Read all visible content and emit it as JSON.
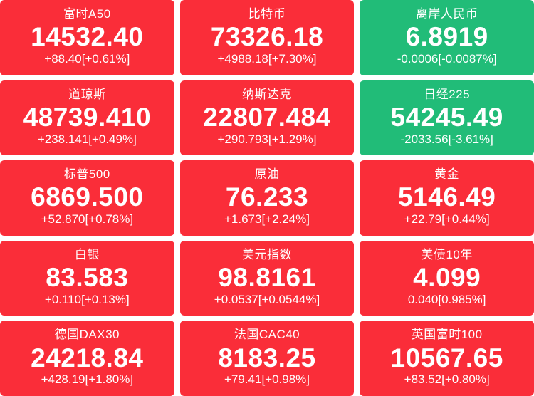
{
  "page": {
    "background": "#ffffff"
  },
  "colors": {
    "up": "#FA2D39",
    "down": "#21BC78",
    "text": "#FFFFFF"
  },
  "tiles": [
    {
      "name": "富时A50",
      "value": "14532.40",
      "change": "+88.40[+0.61%]",
      "trend": "up"
    },
    {
      "name": "比特币",
      "value": "73326.18",
      "change": "+4988.18[+7.30%]",
      "trend": "up"
    },
    {
      "name": "离岸人民币",
      "value": "6.8919",
      "change": "-0.0006[-0.0087%]",
      "trend": "down"
    },
    {
      "name": "道琼斯",
      "value": "48739.410",
      "change": "+238.141[+0.49%]",
      "trend": "up"
    },
    {
      "name": "纳斯达克",
      "value": "22807.484",
      "change": "+290.793[+1.29%]",
      "trend": "up"
    },
    {
      "name": "日经225",
      "value": "54245.49",
      "change": "-2033.56[-3.61%]",
      "trend": "down"
    },
    {
      "name": "标普500",
      "value": "6869.500",
      "change": "+52.870[+0.78%]",
      "trend": "up"
    },
    {
      "name": "原油",
      "value": "76.233",
      "change": "+1.673[+2.24%]",
      "trend": "up"
    },
    {
      "name": "黄金",
      "value": "5146.49",
      "change": "+22.79[+0.44%]",
      "trend": "up"
    },
    {
      "name": "白银",
      "value": "83.583",
      "change": "+0.110[+0.13%]",
      "trend": "up"
    },
    {
      "name": "美元指数",
      "value": "98.8161",
      "change": "+0.0537[+0.0544%]",
      "trend": "up"
    },
    {
      "name": "美债10年",
      "value": "4.099",
      "change": "0.040[0.985%]",
      "trend": "up"
    },
    {
      "name": "德国DAX30",
      "value": "24218.84",
      "change": "+428.19[+1.80%]",
      "trend": "up"
    },
    {
      "name": "法国CAC40",
      "value": "8183.25",
      "change": "+79.41[+0.98%]",
      "trend": "up"
    },
    {
      "name": "英国富时100",
      "value": "10567.65",
      "change": "+83.52[+0.80%]",
      "trend": "up"
    }
  ]
}
